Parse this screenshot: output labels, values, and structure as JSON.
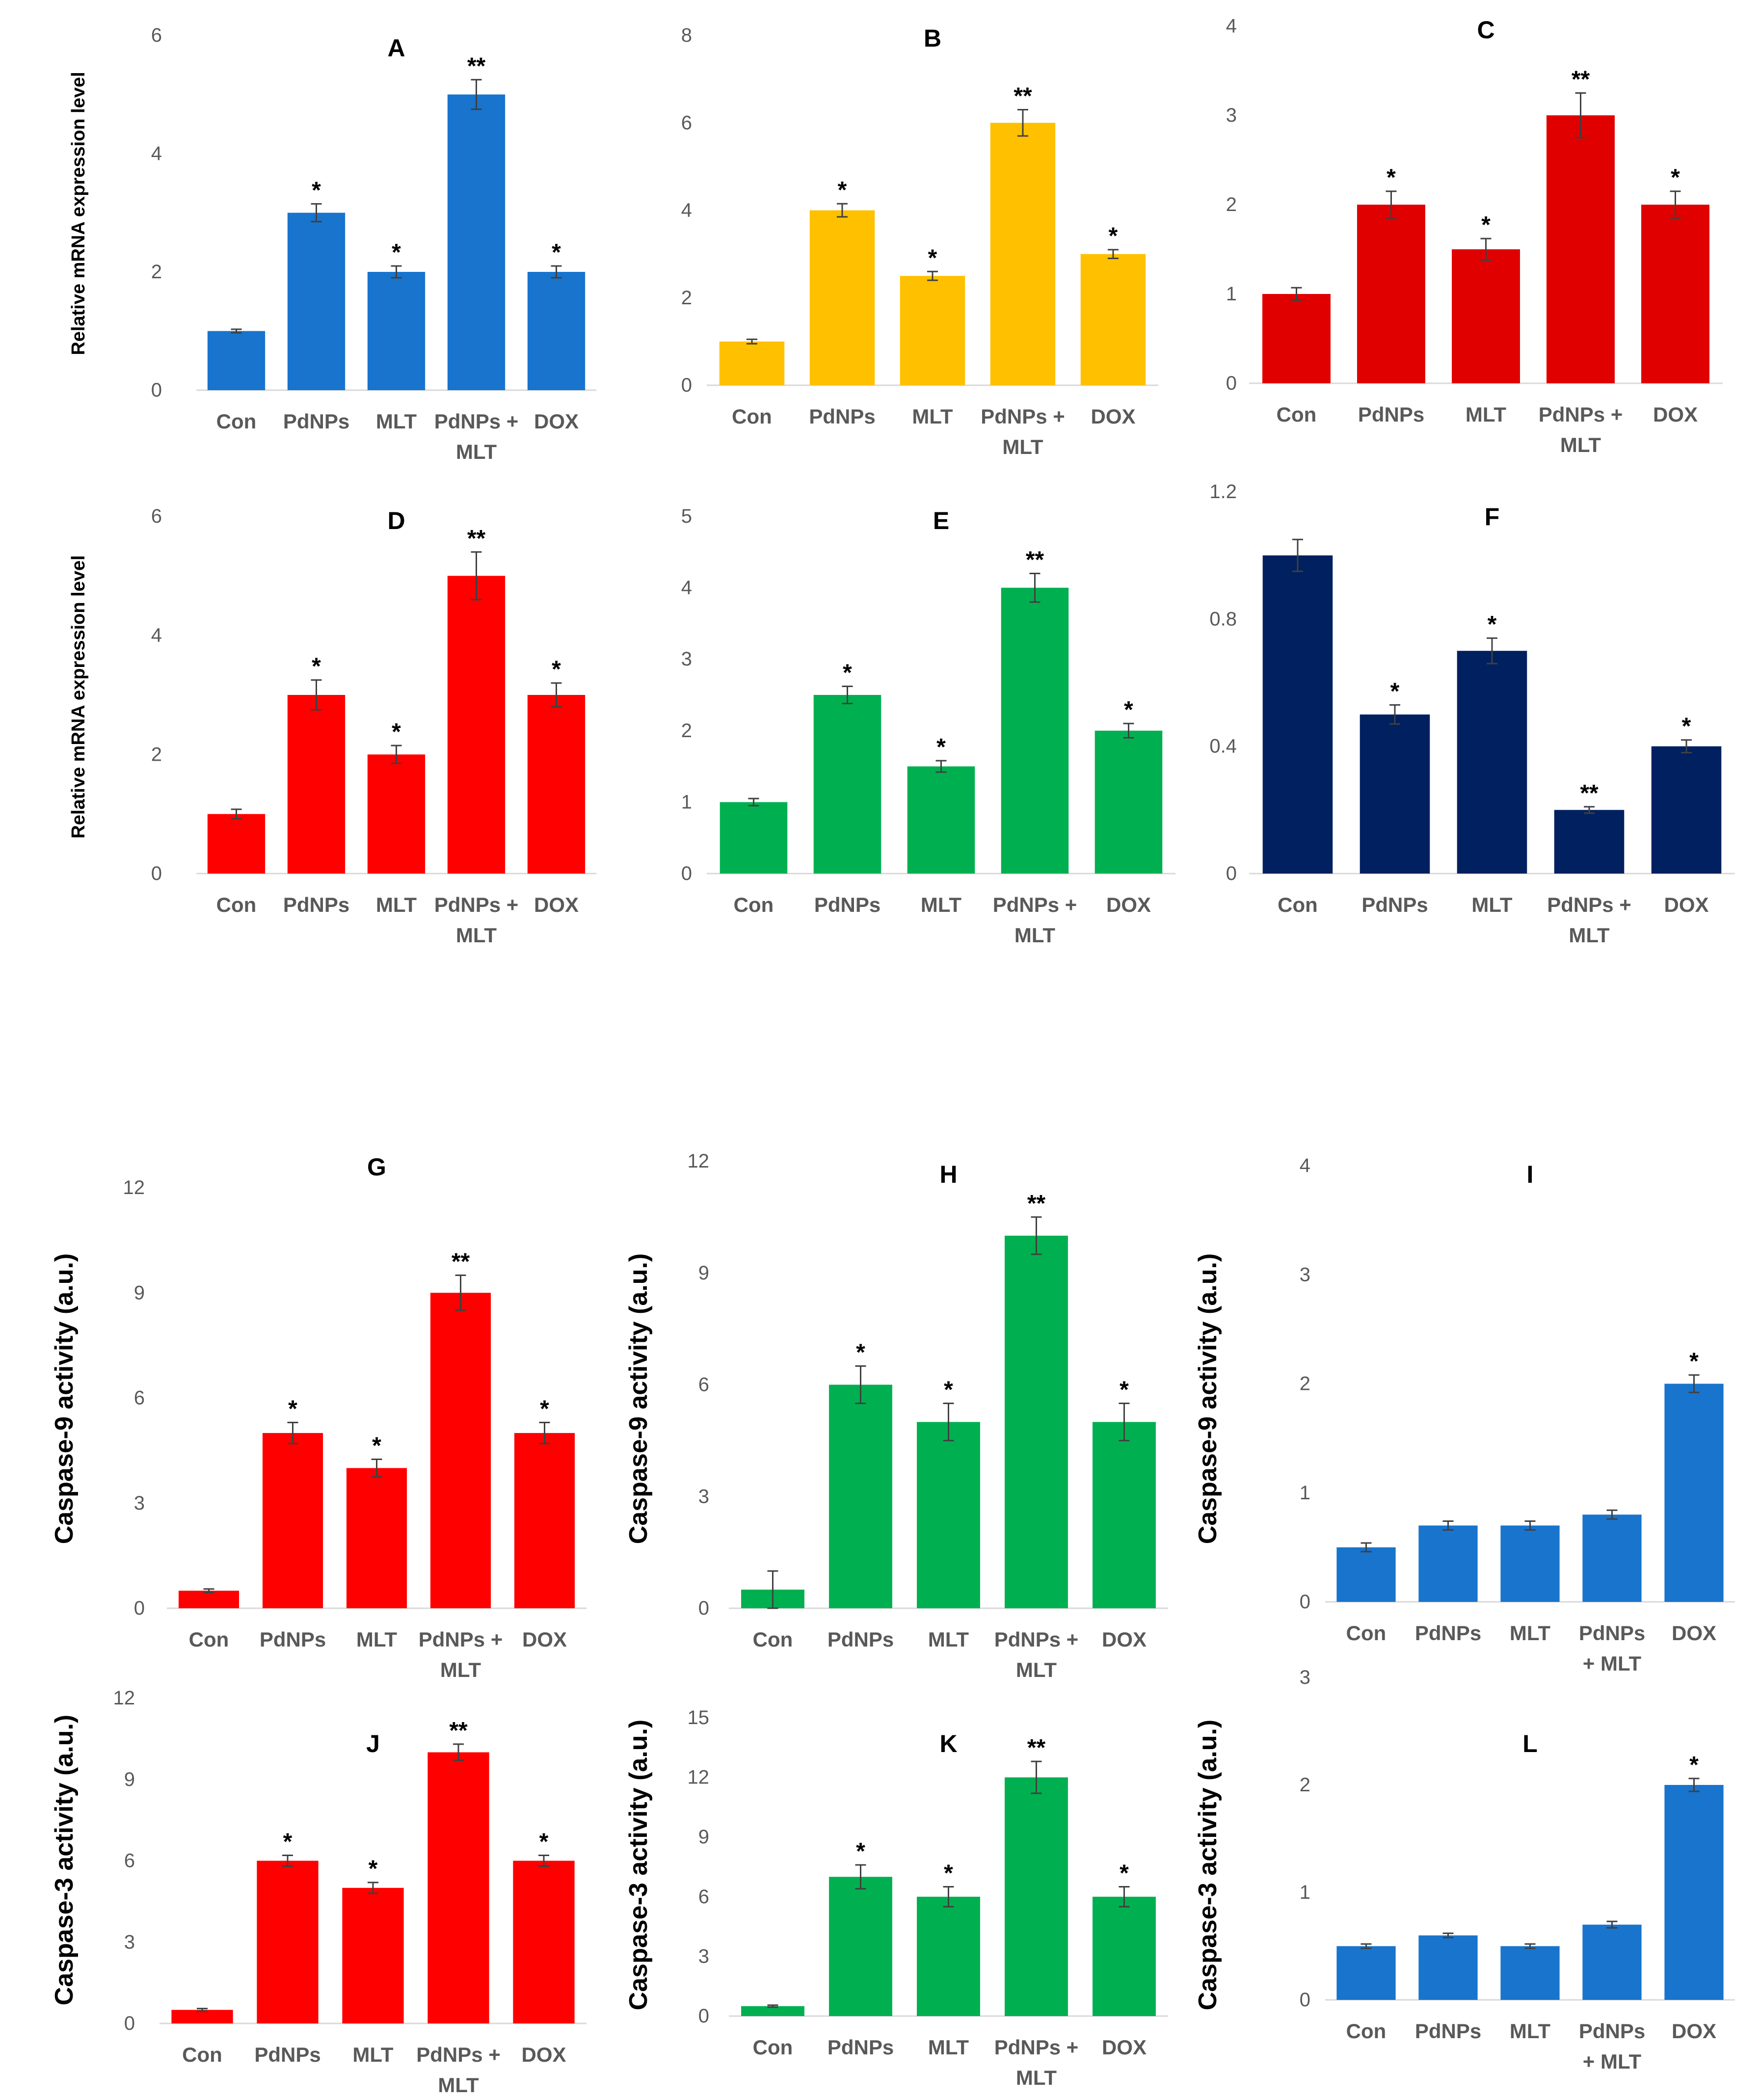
{
  "figure": {
    "ylabels": {
      "mrna": "Relative mRNA expression level",
      "casp9": "Caspase-9 activity (a.u.)",
      "casp3": "Caspase-3 activity (a.u.)"
    }
  },
  "chart_data": [
    {
      "panel": "A",
      "type": "bar",
      "color": "#1874CD",
      "ylabel": "Relative mRNA expression level",
      "ylim": [
        0,
        6
      ],
      "yticks": [
        "0",
        "2",
        "4",
        "6"
      ],
      "categories": [
        [
          "Con"
        ],
        [
          "PdNPs"
        ],
        [
          "MLT"
        ],
        [
          "PdNPs +",
          "MLT"
        ],
        [
          "DOX"
        ]
      ],
      "values": [
        1,
        3,
        2,
        5,
        2
      ],
      "errors": [
        0.03,
        0.15,
        0.1,
        0.25,
        0.1
      ],
      "sig": [
        "",
        "*",
        "*",
        "**",
        "*"
      ]
    },
    {
      "panel": "B",
      "type": "bar",
      "color": "#FFC000",
      "ylabel": "",
      "ylim": [
        0,
        8
      ],
      "yticks": [
        "0",
        "2",
        "4",
        "6",
        "8"
      ],
      "categories": [
        [
          "Con"
        ],
        [
          "PdNPs"
        ],
        [
          "MLT"
        ],
        [
          "PdNPs +",
          "MLT"
        ],
        [
          "DOX"
        ]
      ],
      "values": [
        1,
        4,
        2.5,
        6,
        3
      ],
      "errors": [
        0.05,
        0.15,
        0.1,
        0.3,
        0.1
      ],
      "sig": [
        "",
        "*",
        "*",
        "**",
        "*"
      ]
    },
    {
      "panel": "C",
      "type": "bar",
      "color": "#E00000",
      "ylabel": "",
      "ylim": [
        0,
        4
      ],
      "yticks": [
        "0",
        "1",
        "2",
        "3",
        "4"
      ],
      "categories": [
        [
          "Con"
        ],
        [
          "PdNPs"
        ],
        [
          "MLT"
        ],
        [
          "PdNPs +",
          "MLT"
        ],
        [
          "DOX"
        ]
      ],
      "values": [
        1,
        2,
        1.5,
        3,
        2
      ],
      "errors": [
        0.07,
        0.15,
        0.12,
        0.25,
        0.15
      ],
      "sig": [
        "",
        "*",
        "*",
        "**",
        "*"
      ]
    },
    {
      "panel": "D",
      "type": "bar",
      "color": "#FF0000",
      "ylabel": "Relative mRNA expression level",
      "ylim": [
        0,
        6
      ],
      "yticks": [
        "0",
        "2",
        "4",
        "6"
      ],
      "categories": [
        [
          "Con"
        ],
        [
          "PdNPs"
        ],
        [
          "MLT"
        ],
        [
          "PdNPs +",
          "MLT"
        ],
        [
          "DOX"
        ]
      ],
      "values": [
        1,
        3,
        2,
        5,
        3
      ],
      "errors": [
        0.08,
        0.25,
        0.15,
        0.4,
        0.2
      ],
      "sig": [
        "",
        "*",
        "*",
        "**",
        "*"
      ]
    },
    {
      "panel": "E",
      "type": "bar",
      "color": "#00B050",
      "ylabel": "",
      "ylim": [
        0,
        5
      ],
      "yticks": [
        "0",
        "1",
        "2",
        "3",
        "4",
        "5"
      ],
      "categories": [
        [
          "Con"
        ],
        [
          "PdNPs"
        ],
        [
          "MLT"
        ],
        [
          "PdNPs +",
          "MLT"
        ],
        [
          "DOX"
        ]
      ],
      "values": [
        1,
        2.5,
        1.5,
        4,
        2
      ],
      "errors": [
        0.05,
        0.12,
        0.08,
        0.2,
        0.1
      ],
      "sig": [
        "",
        "*",
        "*",
        "**",
        "*"
      ]
    },
    {
      "panel": "F",
      "type": "bar",
      "color": "#002060",
      "ylabel": "",
      "ylim": [
        0,
        1.2
      ],
      "yticks": [
        "0",
        "0.4",
        "0.8",
        "1.2"
      ],
      "categories": [
        [
          "Con"
        ],
        [
          "PdNPs"
        ],
        [
          "MLT"
        ],
        [
          "PdNPs +",
          "MLT"
        ],
        [
          "DOX"
        ]
      ],
      "values": [
        1,
        0.5,
        0.7,
        0.2,
        0.4
      ],
      "errors": [
        0.05,
        0.03,
        0.04,
        0.01,
        0.02
      ],
      "sig": [
        "",
        "*",
        "*",
        "**",
        "*"
      ]
    },
    {
      "panel": "G",
      "type": "bar",
      "color": "#FF0000",
      "ylabel": "Caspase-9 activity (a.u.)",
      "ylim": [
        0,
        12
      ],
      "yticks": [
        "0",
        "3",
        "6",
        "9",
        "12"
      ],
      "categories": [
        [
          "Con"
        ],
        [
          "PdNPs"
        ],
        [
          "MLT"
        ],
        [
          "PdNPs +",
          "MLT"
        ],
        [
          "DOX"
        ]
      ],
      "values": [
        0.5,
        5,
        4,
        9,
        5
      ],
      "errors": [
        0.05,
        0.3,
        0.25,
        0.5,
        0.3
      ],
      "sig": [
        "",
        "*",
        "*",
        "**",
        "*"
      ]
    },
    {
      "panel": "H",
      "type": "bar",
      "color": "#00B050",
      "ylabel": "Caspase-9 activity (a.u.)",
      "ylim": [
        0,
        12
      ],
      "yticks": [
        "0",
        "3",
        "6",
        "9",
        "12"
      ],
      "categories": [
        [
          "Con"
        ],
        [
          "PdNPs"
        ],
        [
          "MLT"
        ],
        [
          "PdNPs +",
          "MLT"
        ],
        [
          "DOX"
        ]
      ],
      "values": [
        0.5,
        6,
        5,
        10,
        5
      ],
      "errors": [
        0.5,
        0.5,
        0.5,
        0.5,
        0.5
      ],
      "sig": [
        "",
        "*",
        "*",
        "**",
        "*"
      ]
    },
    {
      "panel": "I",
      "type": "bar",
      "color": "#1874CD",
      "ylabel": "Caspase-9 activity (a.u.)",
      "ylim": [
        0,
        4
      ],
      "yticks": [
        "0",
        "1",
        "2",
        "3",
        "4"
      ],
      "categories": [
        [
          "Con"
        ],
        [
          "PdNPs"
        ],
        [
          "MLT"
        ],
        [
          "PdNPs",
          "+ MLT"
        ],
        [
          "DOX"
        ]
      ],
      "values": [
        0.5,
        0.7,
        0.7,
        0.8,
        2
      ],
      "errors": [
        0.04,
        0.04,
        0.04,
        0.04,
        0.08
      ],
      "sig": [
        "",
        "",
        "",
        "",
        "*"
      ]
    },
    {
      "panel": "J",
      "type": "bar",
      "color": "#FF0000",
      "ylabel": "Caspase-3 activity (a.u.)",
      "ylim": [
        0,
        12
      ],
      "yticks": [
        "0",
        "3",
        "6",
        "9",
        "12"
      ],
      "categories": [
        [
          "Con"
        ],
        [
          "PdNPs"
        ],
        [
          "MLT"
        ],
        [
          "PdNPs +",
          "MLT"
        ],
        [
          "DOX"
        ]
      ],
      "values": [
        0.5,
        6,
        5,
        10,
        6
      ],
      "errors": [
        0.05,
        0.2,
        0.2,
        0.3,
        0.2
      ],
      "sig": [
        "",
        "*",
        "*",
        "**",
        "*"
      ]
    },
    {
      "panel": "K",
      "type": "bar",
      "color": "#00B050",
      "ylabel": "Caspase-3 activity (a.u.)",
      "ylim": [
        0,
        15
      ],
      "yticks": [
        "0",
        "3",
        "6",
        "9",
        "12",
        "15"
      ],
      "categories": [
        [
          "Con"
        ],
        [
          "PdNPs"
        ],
        [
          "MLT"
        ],
        [
          "PdNPs +",
          "MLT"
        ],
        [
          "DOX"
        ]
      ],
      "values": [
        0.5,
        7,
        6,
        12,
        6
      ],
      "errors": [
        0.05,
        0.6,
        0.5,
        0.8,
        0.5
      ],
      "sig": [
        "",
        "*",
        "*",
        "**",
        "*"
      ]
    },
    {
      "panel": "L",
      "type": "bar",
      "color": "#1874CD",
      "ylabel": "Caspase-3 activity (a.u.)",
      "ylim": [
        0,
        3
      ],
      "yticks": [
        "0",
        "1",
        "2",
        "3"
      ],
      "categories": [
        [
          "Con"
        ],
        [
          "PdNPs"
        ],
        [
          "MLT"
        ],
        [
          "PdNPs",
          "+ MLT"
        ],
        [
          "DOX"
        ]
      ],
      "values": [
        0.5,
        0.6,
        0.5,
        0.7,
        2
      ],
      "errors": [
        0.02,
        0.02,
        0.02,
        0.03,
        0.06
      ],
      "sig": [
        "",
        "",
        "",
        "",
        "*"
      ]
    }
  ]
}
